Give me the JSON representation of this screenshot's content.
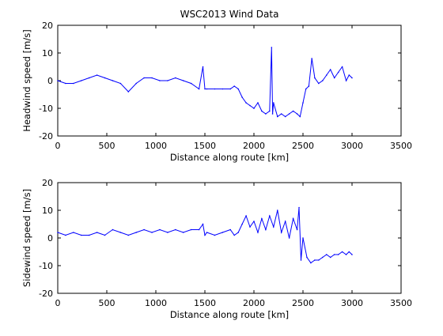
{
  "figure_title": "WSC2013 Wind Data",
  "chart_data": [
    {
      "type": "line",
      "name": "headwind",
      "xlabel": "Distance along route [km]",
      "ylabel": "Headwind speed [m/s]",
      "xlim": [
        0,
        3500
      ],
      "ylim": [
        -20,
        20
      ],
      "xticks": [
        0,
        500,
        1000,
        1500,
        2000,
        2500,
        3000,
        3500
      ],
      "yticks": [
        -20,
        -10,
        0,
        10,
        20
      ],
      "grid": false,
      "color": "#0000ff",
      "x": [
        0,
        80,
        160,
        240,
        320,
        400,
        480,
        560,
        640,
        720,
        800,
        880,
        960,
        1040,
        1120,
        1200,
        1280,
        1360,
        1440,
        1480,
        1500,
        1520,
        1600,
        1680,
        1760,
        1800,
        1840,
        1880,
        1920,
        1960,
        2000,
        2040,
        2080,
        2120,
        2160,
        2180,
        2190,
        2200,
        2240,
        2280,
        2320,
        2360,
        2400,
        2440,
        2470,
        2500,
        2530,
        2560,
        2590,
        2620,
        2660,
        2700,
        2740,
        2780,
        2820,
        2860,
        2900,
        2940,
        2970,
        3000
      ],
      "y": [
        0,
        -1,
        -1,
        0,
        1,
        2,
        1,
        0,
        -1,
        -4,
        -1,
        1,
        1,
        0,
        0,
        1,
        0,
        -1,
        -3,
        5,
        -3,
        -3,
        -3,
        -3,
        -3,
        -2,
        -3,
        -6,
        -8,
        -9,
        -10,
        -8,
        -11,
        -12,
        -11,
        12,
        -12,
        -8,
        -13,
        -12,
        -13,
        -12,
        -11,
        -12,
        -13,
        -8,
        -3,
        -2,
        8,
        1,
        -1,
        0,
        2,
        4,
        1,
        3,
        5,
        0,
        2,
        1
      ]
    },
    {
      "type": "line",
      "name": "sidewind",
      "xlabel": "Distance along route [km]",
      "ylabel": "Sidewind speed [m/s]",
      "xlim": [
        0,
        3500
      ],
      "ylim": [
        -20,
        20
      ],
      "xticks": [
        0,
        500,
        1000,
        1500,
        2000,
        2500,
        3000,
        3500
      ],
      "yticks": [
        -20,
        -10,
        0,
        10,
        20
      ],
      "grid": false,
      "color": "#0000ff",
      "x": [
        0,
        80,
        160,
        240,
        320,
        400,
        480,
        560,
        640,
        720,
        800,
        880,
        960,
        1040,
        1120,
        1200,
        1280,
        1360,
        1440,
        1480,
        1500,
        1520,
        1600,
        1680,
        1760,
        1800,
        1840,
        1880,
        1920,
        1960,
        2000,
        2040,
        2080,
        2120,
        2160,
        2200,
        2240,
        2280,
        2320,
        2360,
        2400,
        2440,
        2460,
        2480,
        2500,
        2540,
        2580,
        2620,
        2660,
        2700,
        2740,
        2780,
        2820,
        2860,
        2900,
        2940,
        2970,
        3000
      ],
      "y": [
        2,
        1,
        2,
        1,
        1,
        2,
        1,
        3,
        2,
        1,
        2,
        3,
        2,
        3,
        2,
        3,
        2,
        3,
        3,
        5,
        1,
        2,
        1,
        2,
        3,
        1,
        2,
        5,
        8,
        4,
        6,
        2,
        7,
        3,
        8,
        4,
        10,
        2,
        6,
        0,
        7,
        3,
        11,
        -8,
        0,
        -7,
        -9,
        -8,
        -8,
        -7,
        -6,
        -7,
        -6,
        -6,
        -5,
        -6,
        -5,
        -6
      ]
    }
  ]
}
